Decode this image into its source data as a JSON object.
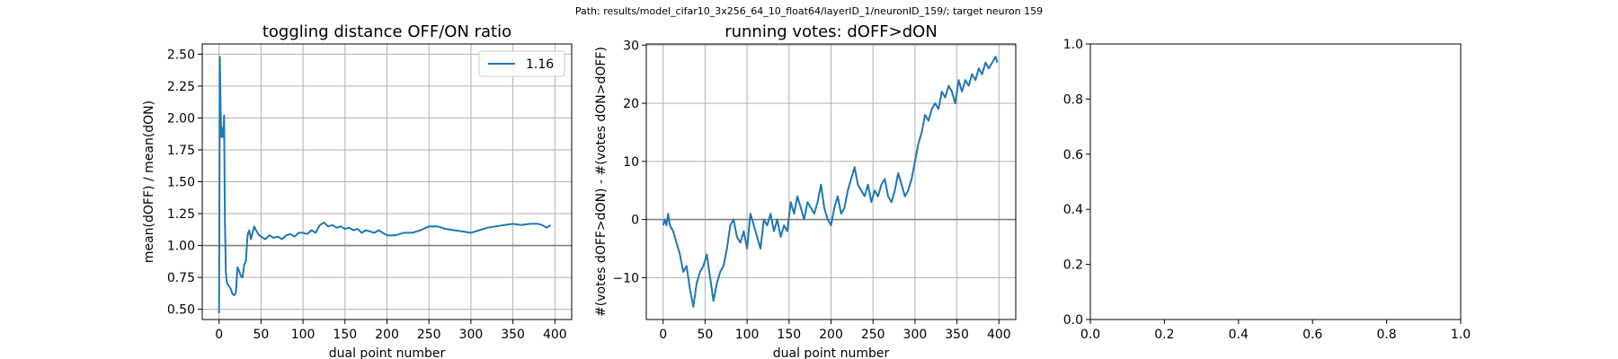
{
  "suptitle": "Path: results/model_cifar10_3x256_64_10_float64/layerID_1/neuronID_159/; target neuron 159",
  "colors": {
    "series": "#1f77b4",
    "grid": "#b0b0b0",
    "refline": "#808080",
    "axes": "#000000"
  },
  "chart_data": [
    {
      "type": "line",
      "title": "toggling distance OFF/ON ratio",
      "xlabel": "dual point number",
      "ylabel": "mean(dOFF) / mean(dON)",
      "xlim": [
        -20,
        420
      ],
      "ylim": [
        0.42,
        2.58
      ],
      "xticks": [
        0,
        50,
        100,
        150,
        200,
        250,
        300,
        350,
        400
      ],
      "yticks": [
        0.5,
        0.75,
        1.0,
        1.25,
        1.5,
        1.75,
        2.0,
        2.25,
        2.5
      ],
      "ytick_labels": [
        "0.50",
        "0.75",
        "1.00",
        "1.25",
        "1.50",
        "1.75",
        "2.00",
        "2.25",
        "2.50"
      ],
      "grid": true,
      "reference_line": 1.0,
      "legend": {
        "position": "top-right",
        "entries": [
          "1.16"
        ]
      },
      "series": [
        {
          "name": "1.16",
          "x": [
            0,
            1,
            2,
            3,
            4,
            5,
            6,
            7,
            8,
            9,
            10,
            12,
            14,
            16,
            18,
            20,
            22,
            24,
            26,
            28,
            30,
            32,
            34,
            36,
            38,
            40,
            42,
            44,
            46,
            48,
            50,
            55,
            60,
            65,
            70,
            75,
            80,
            85,
            90,
            95,
            100,
            105,
            110,
            115,
            120,
            125,
            130,
            135,
            140,
            145,
            150,
            155,
            160,
            165,
            170,
            175,
            180,
            185,
            190,
            195,
            200,
            210,
            220,
            230,
            240,
            250,
            260,
            270,
            280,
            290,
            300,
            310,
            320,
            330,
            340,
            350,
            360,
            370,
            380,
            385,
            390,
            395
          ],
          "y": [
            0.47,
            2.48,
            2.0,
            1.85,
            1.92,
            1.85,
            2.02,
            1.2,
            0.8,
            0.72,
            0.7,
            0.68,
            0.66,
            0.62,
            0.61,
            0.63,
            0.83,
            0.8,
            0.76,
            0.75,
            0.85,
            0.88,
            1.08,
            1.12,
            1.05,
            1.1,
            1.15,
            1.12,
            1.1,
            1.08,
            1.07,
            1.05,
            1.08,
            1.06,
            1.07,
            1.05,
            1.08,
            1.09,
            1.07,
            1.1,
            1.1,
            1.09,
            1.12,
            1.1,
            1.16,
            1.18,
            1.15,
            1.16,
            1.14,
            1.15,
            1.13,
            1.14,
            1.12,
            1.13,
            1.1,
            1.12,
            1.11,
            1.1,
            1.12,
            1.1,
            1.08,
            1.08,
            1.1,
            1.1,
            1.12,
            1.15,
            1.15,
            1.13,
            1.12,
            1.11,
            1.1,
            1.12,
            1.14,
            1.15,
            1.16,
            1.17,
            1.16,
            1.17,
            1.17,
            1.16,
            1.14,
            1.16
          ]
        }
      ]
    },
    {
      "type": "line",
      "title": "running votes: dOFF>dON",
      "xlabel": "dual point number",
      "ylabel": "#(votes dOFF>dON) - #(votes dON>dOFF)",
      "xlim": [
        -20,
        420
      ],
      "ylim": [
        -17.2,
        30.2
      ],
      "xticks": [
        0,
        50,
        100,
        150,
        200,
        250,
        300,
        350,
        400
      ],
      "yticks": [
        -10,
        0,
        10,
        20,
        30
      ],
      "ytick_labels": [
        "−10",
        "0",
        "10",
        "20",
        "30"
      ],
      "grid": true,
      "reference_line": 0,
      "series": [
        {
          "name": "",
          "x": [
            0,
            2,
            4,
            6,
            8,
            12,
            16,
            20,
            24,
            28,
            32,
            36,
            40,
            44,
            48,
            52,
            56,
            60,
            64,
            68,
            72,
            76,
            80,
            84,
            88,
            92,
            96,
            100,
            104,
            108,
            112,
            116,
            120,
            124,
            128,
            132,
            136,
            140,
            144,
            148,
            152,
            156,
            160,
            164,
            168,
            172,
            176,
            180,
            184,
            188,
            192,
            196,
            200,
            204,
            208,
            212,
            216,
            220,
            224,
            228,
            232,
            236,
            240,
            244,
            248,
            252,
            256,
            260,
            264,
            268,
            272,
            276,
            280,
            284,
            288,
            292,
            296,
            300,
            304,
            308,
            312,
            316,
            320,
            324,
            328,
            332,
            336,
            340,
            344,
            348,
            352,
            356,
            360,
            364,
            368,
            372,
            376,
            380,
            384,
            388,
            392,
            396,
            398
          ],
          "y": [
            -1,
            0,
            -1,
            1,
            -1,
            -2,
            -4,
            -6,
            -9,
            -8,
            -12,
            -15,
            -11,
            -9,
            -8,
            -6,
            -10,
            -14,
            -11,
            -9,
            -8,
            -5,
            -1,
            0,
            -3,
            -4,
            -2,
            -5,
            1,
            -1,
            -3,
            -5,
            0,
            -1,
            1,
            -2,
            0,
            -3,
            -1,
            -2,
            3,
            1,
            4,
            2,
            0,
            3,
            2,
            1,
            3,
            6,
            2,
            0,
            -1,
            2,
            4,
            1,
            2,
            5,
            7,
            9,
            6,
            5,
            4,
            6,
            3,
            5,
            4,
            6,
            7,
            4,
            3,
            5,
            8,
            6,
            4,
            5,
            7,
            10,
            13,
            15,
            18,
            17,
            19,
            20,
            19,
            22,
            21,
            23,
            22,
            20,
            24,
            22,
            24,
            23,
            25,
            24,
            26,
            25,
            27,
            26,
            27,
            28,
            27
          ]
        }
      ]
    },
    {
      "type": "line",
      "title": "",
      "xlabel": "",
      "ylabel": "",
      "xlim": [
        0,
        1
      ],
      "ylim": [
        0,
        1
      ],
      "xticks": [
        0,
        0.2,
        0.4,
        0.6,
        0.8,
        1.0
      ],
      "yticks": [
        0,
        0.2,
        0.4,
        0.6,
        0.8,
        1.0
      ],
      "xtick_labels": [
        "0.0",
        "0.2",
        "0.4",
        "0.6",
        "0.8",
        "1.0"
      ],
      "ytick_labels": [
        "0.0",
        "0.2",
        "0.4",
        "0.6",
        "0.8",
        "1.0"
      ],
      "grid": false,
      "series": []
    }
  ]
}
